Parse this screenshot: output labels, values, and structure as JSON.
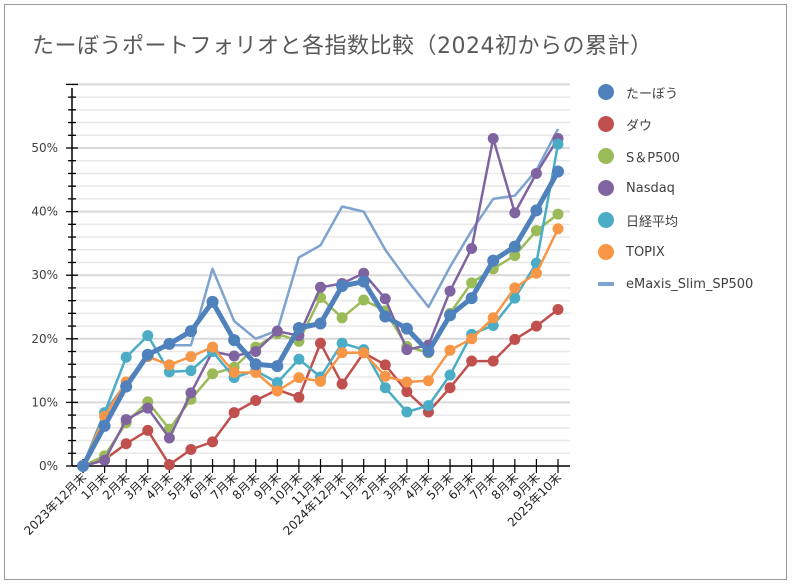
{
  "chart_data": {
    "type": "line",
    "title": "たーぼうポートフォリオと各指数比較（2024初からの累計）",
    "xlabel": "",
    "ylabel": "",
    "ylim": [
      0,
      0.6
    ],
    "yticks": [
      0,
      0.1,
      0.2,
      0.3,
      0.4,
      0.5
    ],
    "ytick_labels": [
      "0%",
      "10%",
      "20%",
      "30%",
      "40%",
      "50%"
    ],
    "grid": true,
    "legend_position": "right",
    "categories": [
      "2023年12月末",
      "1月末",
      "2月末",
      "3月末",
      "4月末",
      "5月末",
      "6月末",
      "7月末",
      "8月末",
      "9月末",
      "10月末",
      "11月末",
      "2024年12月末",
      "1月末",
      "2月末",
      "3月末",
      "4月末",
      "5月末",
      "6月末",
      "7月末",
      "8月末",
      "9月末",
      "2025年10末"
    ],
    "series": [
      {
        "name": "たーぼう",
        "color": "#4F81BD",
        "marker": true,
        "thick": true,
        "values": [
          0.0,
          0.063,
          0.125,
          0.175,
          0.192,
          0.212,
          0.258,
          0.198,
          0.16,
          0.157,
          0.217,
          0.224,
          0.283,
          0.29,
          0.235,
          0.216,
          0.18,
          0.237,
          0.264,
          0.323,
          0.345,
          0.402,
          0.463
        ]
      },
      {
        "name": "ダウ",
        "color": "#C0504D",
        "marker": true,
        "thick": false,
        "values": [
          0.0,
          0.01,
          0.035,
          0.056,
          0.002,
          0.026,
          0.038,
          0.084,
          0.103,
          0.12,
          0.108,
          0.193,
          0.129,
          0.178,
          0.159,
          0.117,
          0.085,
          0.123,
          0.165,
          0.165,
          0.199,
          0.22,
          0.246
        ]
      },
      {
        "name": "S＆P500",
        "color": "#9BBB59",
        "marker": true,
        "thick": false,
        "values": [
          0.0,
          0.016,
          0.068,
          0.101,
          0.058,
          0.105,
          0.145,
          0.155,
          0.187,
          0.208,
          0.196,
          0.265,
          0.233,
          0.261,
          0.244,
          0.188,
          0.178,
          0.24,
          0.288,
          0.31,
          0.331,
          0.37,
          0.396
        ]
      },
      {
        "name": "Nasdaq",
        "color": "#8064A2",
        "marker": true,
        "thick": false,
        "values": [
          0.0,
          0.009,
          0.073,
          0.091,
          0.044,
          0.115,
          0.18,
          0.173,
          0.18,
          0.212,
          0.205,
          0.281,
          0.287,
          0.303,
          0.263,
          0.183,
          0.19,
          0.275,
          0.342,
          0.515,
          0.398,
          0.46,
          0.515
        ]
      },
      {
        "name": "日経平均",
        "color": "#4BACC6",
        "marker": true,
        "thick": false,
        "values": [
          0.0,
          0.084,
          0.171,
          0.205,
          0.148,
          0.15,
          0.18,
          0.139,
          0.15,
          0.131,
          0.168,
          0.14,
          0.193,
          0.183,
          0.123,
          0.085,
          0.095,
          0.143,
          0.207,
          0.221,
          0.264,
          0.319,
          0.506
        ]
      },
      {
        "name": "TOPIX",
        "color": "#F79646",
        "marker": true,
        "thick": false,
        "values": [
          0.0,
          0.078,
          0.132,
          0.172,
          0.159,
          0.172,
          0.187,
          0.147,
          0.147,
          0.118,
          0.139,
          0.133,
          0.178,
          0.178,
          0.141,
          0.132,
          0.134,
          0.182,
          0.2,
          0.233,
          0.28,
          0.303,
          0.373
        ]
      },
      {
        "name": "eMaxis_Slim_SP500",
        "color": "#7EA3CE",
        "marker": false,
        "thick": false,
        "values": [
          0.0,
          0.085,
          0.13,
          0.175,
          0.19,
          0.19,
          0.31,
          0.228,
          0.2,
          0.213,
          0.328,
          0.347,
          0.408,
          0.4,
          0.34,
          0.293,
          0.25,
          0.313,
          0.37,
          0.42,
          0.425,
          0.465,
          0.53
        ]
      }
    ]
  }
}
